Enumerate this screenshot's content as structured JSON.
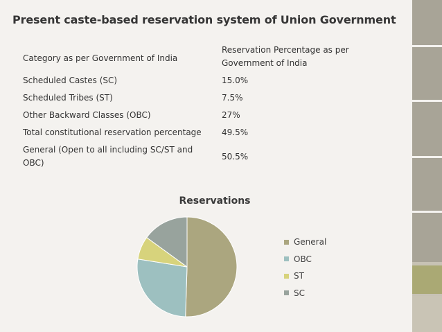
{
  "title": "Present caste-based reservation system of Union Government",
  "table": {
    "headers": [
      "Category as per Government of India",
      "Reservation Percentage as per Government of India"
    ],
    "rows": [
      [
        "Scheduled Castes (SC)",
        "15.0%"
      ],
      [
        "Scheduled Tribes (ST)",
        "7.5%"
      ],
      [
        "Other Backward Classes (OBC)",
        "27%"
      ],
      [
        "Total constitutional reservation percentage",
        "49.5%"
      ],
      [
        "General (Open to all including SC/ST and OBC)",
        "50.5%"
      ]
    ]
  },
  "chart_data": {
    "type": "pie",
    "title": "Reservations",
    "slices": [
      {
        "name": "General",
        "value": 50.5,
        "color": "#aba67f"
      },
      {
        "name": "OBC",
        "value": 27,
        "color": "#9dc0c0"
      },
      {
        "name": "ST",
        "value": 7.5,
        "color": "#d7d37c"
      },
      {
        "name": "SC",
        "value": 15.0,
        "color": "#98a39d"
      }
    ],
    "legend": [
      {
        "name": "General",
        "color": "#aba67f"
      },
      {
        "name": "OBC",
        "color": "#9dc0c0"
      },
      {
        "name": "ST",
        "color": "#d7d37c"
      },
      {
        "name": "SC",
        "color": "#98a39d"
      }
    ],
    "legend_position": "right"
  }
}
